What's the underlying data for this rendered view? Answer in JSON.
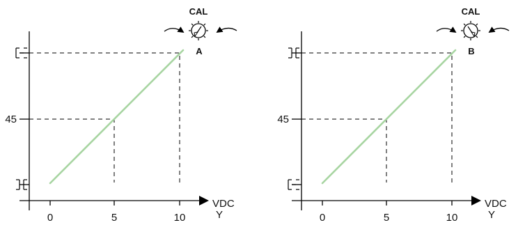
{
  "chart_data": [
    {
      "type": "line",
      "x_ticks": [
        "0",
        "5",
        "10"
      ],
      "y_tick_label": "45",
      "x_unit": "VDC",
      "x_axis_letter": "Y",
      "dial_title": "CAL",
      "dial_label": "A",
      "series": [
        {
          "x": [
            0,
            10
          ],
          "y": [
            0,
            1
          ]
        }
      ]
    },
    {
      "type": "line",
      "x_ticks": [
        "0",
        "5",
        "10"
      ],
      "y_tick_label": "45",
      "x_unit": "VDC",
      "x_axis_letter": "Y",
      "dial_title": "CAL",
      "dial_label": "B",
      "series": [
        {
          "x": [
            0,
            10
          ],
          "y": [
            0,
            1
          ]
        }
      ]
    }
  ]
}
